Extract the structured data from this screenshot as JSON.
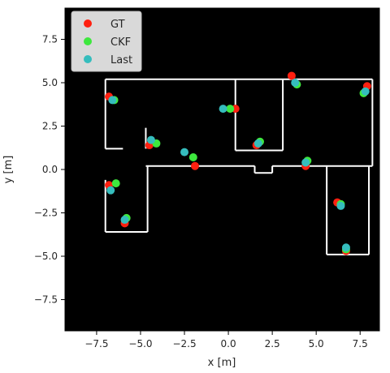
{
  "chart_data": {
    "type": "scatter",
    "title": "",
    "xlabel": "x [m]",
    "ylabel": "y [m]",
    "xlim": [
      -9.3,
      8.6
    ],
    "ylim": [
      -9.3,
      9.3
    ],
    "xticks": [
      -7.5,
      -5.0,
      -2.5,
      0.0,
      2.5,
      5.0,
      7.5
    ],
    "yticks": [
      -7.5,
      -5.0,
      -2.5,
      0.0,
      2.5,
      5.0,
      7.5
    ],
    "xtick_labels": [
      "−7.5",
      "−5.0",
      "−2.5",
      "0.0",
      "2.5",
      "5.0",
      "7.5"
    ],
    "ytick_labels": [
      "−7.5",
      "−5.0",
      "−2.5",
      "0.0",
      "2.5",
      "5.0",
      "7.5"
    ],
    "grid": false,
    "background": "#000000",
    "legend_position": "top-left",
    "map_walls": [
      [
        [
          -7.0,
          5.2
        ],
        [
          8.2,
          5.2
        ]
      ],
      [
        [
          -7.0,
          5.2
        ],
        [
          -7.0,
          1.2
        ]
      ],
      [
        [
          -7.0,
          1.2
        ],
        [
          -6.0,
          1.2
        ]
      ],
      [
        [
          8.2,
          5.2
        ],
        [
          8.2,
          0.2
        ]
      ],
      [
        [
          -4.7,
          2.4
        ],
        [
          -4.7,
          1.2
        ]
      ],
      [
        [
          -4.7,
          0.2
        ],
        [
          1.5,
          0.2
        ]
      ],
      [
        [
          1.5,
          0.2
        ],
        [
          1.5,
          -0.2
        ]
      ],
      [
        [
          1.5,
          -0.2
        ],
        [
          2.5,
          -0.2
        ]
      ],
      [
        [
          2.5,
          -0.2
        ],
        [
          2.5,
          0.2
        ]
      ],
      [
        [
          2.5,
          0.2
        ],
        [
          8.2,
          0.2
        ]
      ],
      [
        [
          0.4,
          5.2
        ],
        [
          0.4,
          1.1
        ]
      ],
      [
        [
          0.4,
          1.1
        ],
        [
          3.1,
          1.1
        ]
      ],
      [
        [
          3.1,
          1.1
        ],
        [
          3.1,
          5.2
        ]
      ],
      [
        [
          -7.0,
          -0.6
        ],
        [
          -7.0,
          -3.6
        ]
      ],
      [
        [
          -7.0,
          -3.6
        ],
        [
          -4.6,
          -3.6
        ]
      ],
      [
        [
          -4.6,
          -3.6
        ],
        [
          -4.6,
          0.2
        ]
      ],
      [
        [
          5.6,
          0.2
        ],
        [
          5.6,
          -4.9
        ]
      ],
      [
        [
          5.6,
          -4.9
        ],
        [
          8.0,
          -4.9
        ]
      ],
      [
        [
          8.0,
          -4.9
        ],
        [
          8.0,
          0.2
        ]
      ]
    ],
    "series": [
      {
        "name": "GT",
        "color": "#ff2010",
        "points": [
          [
            -6.8,
            4.2
          ],
          [
            -4.5,
            1.4
          ],
          [
            -1.9,
            0.2
          ],
          [
            0.4,
            3.5
          ],
          [
            1.6,
            1.4
          ],
          [
            3.6,
            5.4
          ],
          [
            4.4,
            0.2
          ],
          [
            6.2,
            -1.9
          ],
          [
            6.7,
            -4.7
          ],
          [
            7.9,
            4.8
          ],
          [
            -6.8,
            -0.9
          ],
          [
            -5.9,
            -3.1
          ]
        ]
      },
      {
        "name": "CKF",
        "color": "#3ee83e",
        "points": [
          [
            -6.5,
            4.0
          ],
          [
            -4.1,
            1.5
          ],
          [
            -2.0,
            0.7
          ],
          [
            0.1,
            3.5
          ],
          [
            1.8,
            1.6
          ],
          [
            3.9,
            4.9
          ],
          [
            4.5,
            0.5
          ],
          [
            6.4,
            -2.0
          ],
          [
            6.7,
            -4.6
          ],
          [
            7.7,
            4.4
          ],
          [
            -6.4,
            -0.8
          ],
          [
            -5.8,
            -2.8
          ]
        ]
      },
      {
        "name": "Last",
        "color": "#35bdbd",
        "points": [
          [
            -6.6,
            4.0
          ],
          [
            -4.4,
            1.7
          ],
          [
            -2.5,
            1.0
          ],
          [
            -0.3,
            3.5
          ],
          [
            1.7,
            1.5
          ],
          [
            3.8,
            5.0
          ],
          [
            4.4,
            0.4
          ],
          [
            6.4,
            -2.1
          ],
          [
            6.7,
            -4.5
          ],
          [
            7.8,
            4.5
          ],
          [
            -6.7,
            -1.2
          ],
          [
            -5.9,
            -2.9
          ]
        ]
      }
    ]
  }
}
